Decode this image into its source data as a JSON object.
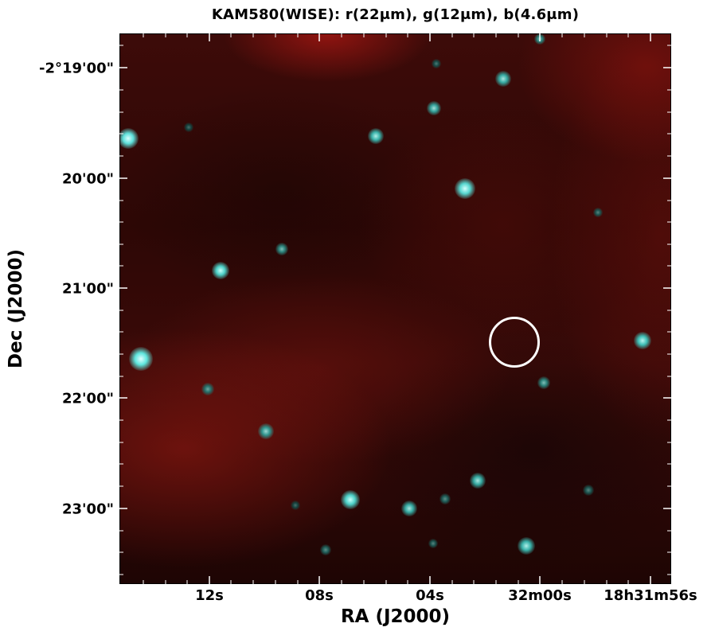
{
  "figure": {
    "title": "KAM580(WISE): r(22μm), g(12μm), b(4.6μm)",
    "xlabel": "RA (J2000)",
    "ylabel": "Dec (J2000)",
    "x_ticks": [
      "12s",
      "08s",
      "04s",
      "32m00s",
      "18h31m56s"
    ],
    "y_ticks": [
      "-2°19'00\"",
      "20'00\"",
      "21'00\"",
      "22'00\"",
      "23'00\""
    ]
  }
}
